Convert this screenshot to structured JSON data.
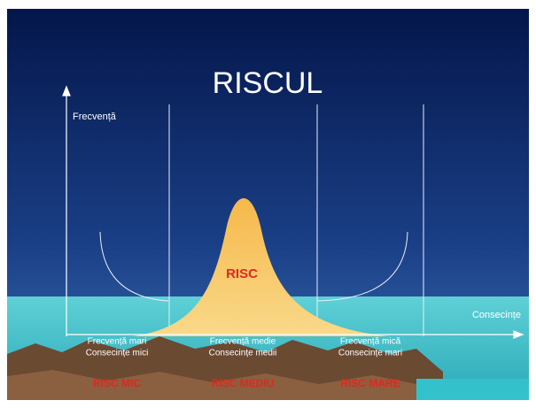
{
  "title": "RISCUL",
  "y_axis_label": "Frecvență",
  "x_axis_label": "Consecințe",
  "curve_label": "RISC",
  "zones": [
    {
      "line1": "Frecvență mari",
      "line2": "Consecințe mici",
      "risk": "RISC MIC"
    },
    {
      "line1": "Frecvență medie",
      "line2": "Consecințe medii",
      "risk": "RISC MEDIU"
    },
    {
      "line1": "Frecvență mică",
      "line2": "Consecințe mari",
      "risk": "RISC MARE"
    }
  ]
}
